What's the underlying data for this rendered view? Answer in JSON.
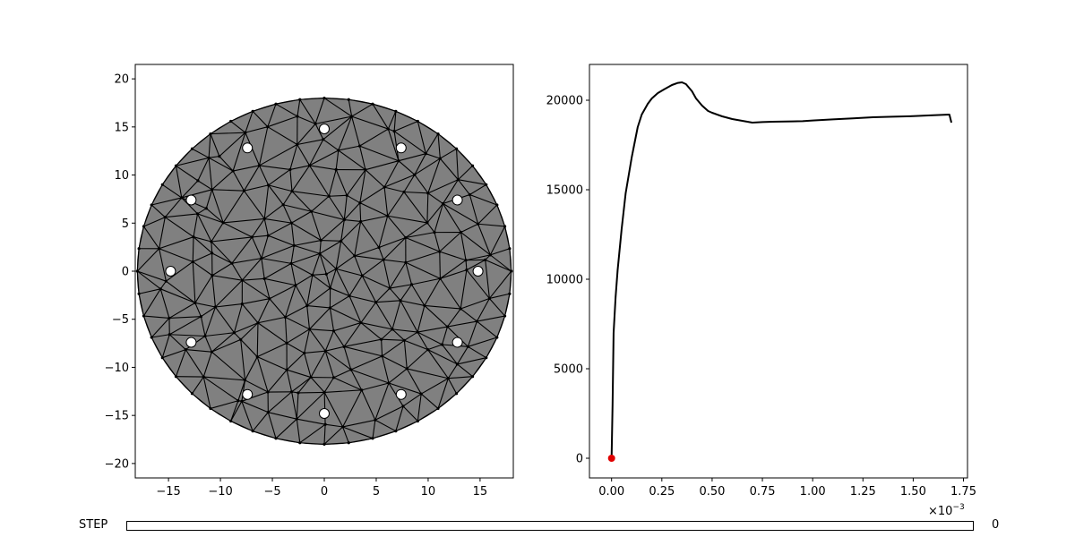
{
  "colors": {
    "mesh_fill": "#808080",
    "mesh_edge": "#000000",
    "hole_fill": "#ffffff",
    "curve": "#000000",
    "marker": "#e00000",
    "slider_fill": "#1f77b4"
  },
  "chart_data": [
    {
      "type": "mesh",
      "xlim": [
        -18.2,
        18.2
      ],
      "ylim": [
        -21.5,
        21.5
      ],
      "xticks": [
        "−15",
        "−10",
        "−5",
        "0",
        "5",
        "10",
        "15"
      ],
      "xtick_values": [
        -15,
        -10,
        -5,
        0,
        5,
        10,
        15
      ],
      "yticks": [
        "20",
        "15",
        "10",
        "5",
        "0",
        "−5",
        "−10",
        "−15",
        "−20"
      ],
      "ytick_values": [
        20,
        15,
        10,
        5,
        0,
        -5,
        -10,
        -15,
        -20
      ],
      "disk_radius": 18,
      "hole_ring_radius": 14.8,
      "hole_count": 12,
      "hole_angles_deg": [
        90,
        60,
        30,
        0,
        -30,
        -60,
        -90,
        -120,
        -150,
        180,
        150,
        120
      ],
      "grid": false
    },
    {
      "type": "line",
      "x": [
        0.0,
        5e-06,
        1e-05,
        2e-05,
        3e-05,
        5e-05,
        7e-05,
        0.0001,
        0.00013,
        0.00015,
        0.00018,
        0.0002,
        0.00023,
        0.00026,
        0.0003,
        0.00033,
        0.00035,
        0.00037,
        0.0004,
        0.00042,
        0.00045,
        0.00048,
        0.0005,
        0.00055,
        0.0006,
        0.00065,
        0.0007,
        0.00075,
        0.0008,
        0.0009,
        0.00095,
        0.001,
        0.0011,
        0.0012,
        0.00125,
        0.0013,
        0.0014,
        0.0015,
        0.0016,
        0.00168,
        0.00169
      ],
      "y": [
        0,
        3000,
        7000,
        9000,
        10500,
        12800,
        14800,
        16800,
        18500,
        19200,
        19800,
        20100,
        20400,
        20600,
        20850,
        20970,
        21000,
        20900,
        20500,
        20100,
        19700,
        19400,
        19300,
        19100,
        18950,
        18850,
        18750,
        18780,
        18800,
        18820,
        18830,
        18870,
        18930,
        18990,
        19020,
        19050,
        19080,
        19110,
        19160,
        19200,
        18750
      ],
      "xlim": [
        -0.00011,
        0.00177
      ],
      "ylim": [
        -1100,
        22000
      ],
      "xticks": [
        "0.00",
        "0.25",
        "0.50",
        "0.75",
        "1.00",
        "1.25",
        "1.50",
        "1.75"
      ],
      "xtick_values": [
        0,
        0.00025,
        0.0005,
        0.00075,
        0.001,
        0.00125,
        0.0015,
        0.00175
      ],
      "x_offset_label": "×10",
      "x_offset_exponent": "−3",
      "yticks": [
        "0",
        "5000",
        "10000",
        "15000",
        "20000"
      ],
      "ytick_values": [
        0,
        5000,
        10000,
        15000,
        20000
      ],
      "marker_point": {
        "x": 0,
        "y": 0
      },
      "grid": false
    }
  ],
  "slider": {
    "label": "STEP",
    "value": "0",
    "fraction": 0
  }
}
